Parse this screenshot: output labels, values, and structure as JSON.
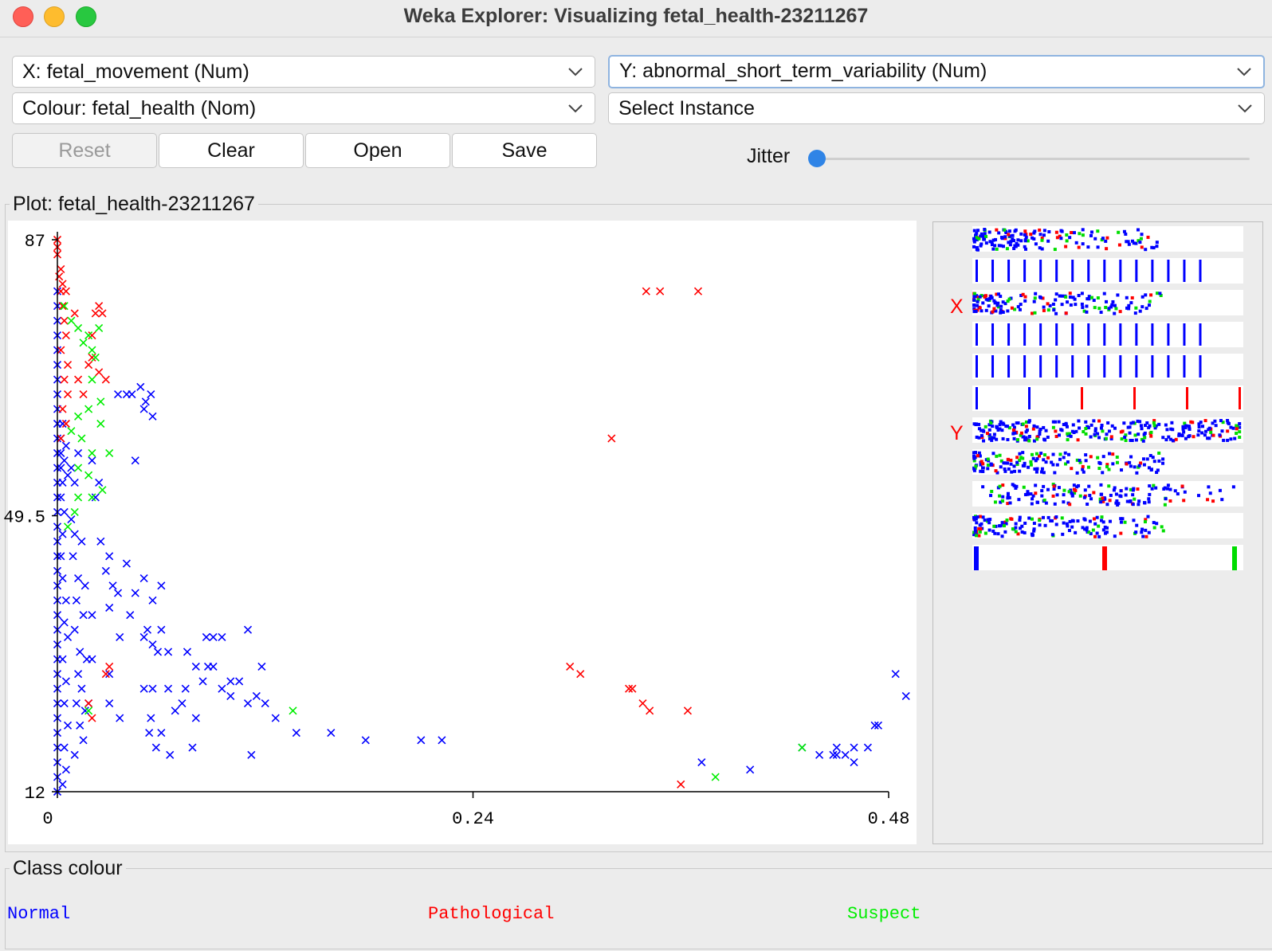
{
  "window": {
    "title": "Weka Explorer: Visualizing fetal_health-23211267"
  },
  "controls": {
    "x_axis": "X: fetal_movement (Num)",
    "y_axis": "Y: abnormal_short_term_variability (Num)",
    "colour": "Colour: fetal_health (Nom)",
    "instance": "Select Instance",
    "reset": "Reset",
    "clear": "Clear",
    "open": "Open",
    "save": "Save",
    "jitter": "Jitter",
    "jitter_value": 0
  },
  "plot": {
    "group_label": "Plot: fetal_health-23211267",
    "y_ticks": [
      "87",
      "49.5",
      "12"
    ],
    "x_ticks": [
      "0",
      "0.24",
      "0.48"
    ]
  },
  "matrix": {
    "x_marker": "X",
    "y_marker": "Y"
  },
  "class_colour": {
    "group_label": "Class colour",
    "classes": [
      {
        "name": "Normal",
        "color": "#0000ff"
      },
      {
        "name": "Pathological",
        "color": "#ff0000"
      },
      {
        "name": "Suspect",
        "color": "#00ee00"
      }
    ]
  },
  "chart_data": {
    "type": "scatter",
    "xlabel": "fetal_movement",
    "ylabel": "abnormal_short_term_variability",
    "xlim": [
      0,
      0.48
    ],
    "ylim": [
      12,
      87
    ],
    "xticks": [
      "0",
      "0.24",
      "0.48"
    ],
    "yticks": [
      "87",
      "49.5",
      "12"
    ],
    "series": [
      {
        "name": "Normal",
        "color": "#0000ff",
        "points": [
          [
            0.0,
            12
          ],
          [
            0.0,
            14
          ],
          [
            0.0,
            16
          ],
          [
            0.0,
            18
          ],
          [
            0.0,
            20
          ],
          [
            0.0,
            22
          ],
          [
            0.0,
            24
          ],
          [
            0.0,
            26
          ],
          [
            0.0,
            28
          ],
          [
            0.0,
            30
          ],
          [
            0.0,
            32
          ],
          [
            0.0,
            34
          ],
          [
            0.0,
            36
          ],
          [
            0.0,
            38
          ],
          [
            0.0,
            40
          ],
          [
            0.0,
            42
          ],
          [
            0.0,
            44
          ],
          [
            0.0,
            46
          ],
          [
            0.0,
            48
          ],
          [
            0.0,
            50
          ],
          [
            0.0,
            52
          ],
          [
            0.0,
            54
          ],
          [
            0.0,
            56
          ],
          [
            0.0,
            58
          ],
          [
            0.0,
            60
          ],
          [
            0.0,
            62
          ],
          [
            0.0,
            64
          ],
          [
            0.0,
            66
          ],
          [
            0.0,
            68
          ],
          [
            0.0,
            70
          ],
          [
            0.0,
            72
          ],
          [
            0.0,
            74
          ],
          [
            0.0,
            76
          ],
          [
            0.0,
            78
          ],
          [
            0.0,
            80
          ],
          [
            0.002,
            56
          ],
          [
            0.002,
            58
          ],
          [
            0.002,
            60
          ],
          [
            0.003,
            62
          ],
          [
            0.002,
            52
          ],
          [
            0.003,
            54
          ],
          [
            0.004,
            57
          ],
          [
            0.005,
            59
          ],
          [
            0.006,
            55
          ],
          [
            0.004,
            50
          ],
          [
            0.003,
            47
          ],
          [
            0.002,
            44
          ],
          [
            0.003,
            41
          ],
          [
            0.005,
            38
          ],
          [
            0.004,
            35
          ],
          [
            0.006,
            33
          ],
          [
            0.003,
            30
          ],
          [
            0.005,
            27
          ],
          [
            0.004,
            24
          ],
          [
            0.006,
            21
          ],
          [
            0.004,
            18
          ],
          [
            0.005,
            15
          ],
          [
            0.003,
            13
          ],
          [
            0.008,
            56
          ],
          [
            0.01,
            54
          ],
          [
            0.012,
            58
          ],
          [
            0.008,
            49
          ],
          [
            0.01,
            47
          ],
          [
            0.014,
            46
          ],
          [
            0.009,
            44
          ],
          [
            0.012,
            41
          ],
          [
            0.016,
            40
          ],
          [
            0.011,
            38
          ],
          [
            0.015,
            36
          ],
          [
            0.01,
            34
          ],
          [
            0.013,
            31
          ],
          [
            0.017,
            30
          ],
          [
            0.012,
            28
          ],
          [
            0.014,
            26
          ],
          [
            0.011,
            24
          ],
          [
            0.016,
            23
          ],
          [
            0.013,
            21
          ],
          [
            0.015,
            19
          ],
          [
            0.01,
            17
          ],
          [
            0.018,
            24
          ],
          [
            0.02,
            30
          ],
          [
            0.02,
            36
          ],
          [
            0.024,
            54
          ],
          [
            0.02,
            57
          ],
          [
            0.022,
            52
          ],
          [
            0.025,
            46
          ],
          [
            0.03,
            44
          ],
          [
            0.028,
            42
          ],
          [
            0.032,
            40
          ],
          [
            0.035,
            39
          ],
          [
            0.03,
            37
          ],
          [
            0.042,
            36
          ],
          [
            0.045,
            39
          ],
          [
            0.05,
            41
          ],
          [
            0.04,
            43
          ],
          [
            0.06,
            40
          ],
          [
            0.055,
            38
          ],
          [
            0.036,
            33
          ],
          [
            0.05,
            33
          ],
          [
            0.03,
            28
          ],
          [
            0.03,
            24
          ],
          [
            0.036,
            22
          ],
          [
            0.035,
            66
          ],
          [
            0.04,
            66
          ],
          [
            0.043,
            66
          ],
          [
            0.048,
            67
          ],
          [
            0.051,
            65
          ],
          [
            0.054,
            66
          ],
          [
            0.05,
            64
          ],
          [
            0.055,
            63
          ],
          [
            0.045,
            57
          ],
          [
            0.052,
            34
          ],
          [
            0.055,
            32
          ],
          [
            0.06,
            34
          ],
          [
            0.058,
            31
          ],
          [
            0.064,
            31
          ],
          [
            0.075,
            31
          ],
          [
            0.086,
            33
          ],
          [
            0.09,
            33
          ],
          [
            0.095,
            33
          ],
          [
            0.087,
            29
          ],
          [
            0.09,
            29
          ],
          [
            0.11,
            34
          ],
          [
            0.105,
            27
          ],
          [
            0.1,
            27
          ],
          [
            0.08,
            29
          ],
          [
            0.118,
            29
          ],
          [
            0.05,
            26
          ],
          [
            0.055,
            26
          ],
          [
            0.064,
            26
          ],
          [
            0.074,
            26
          ],
          [
            0.084,
            27
          ],
          [
            0.095,
            26
          ],
          [
            0.1,
            25
          ],
          [
            0.115,
            25
          ],
          [
            0.12,
            24
          ],
          [
            0.11,
            24
          ],
          [
            0.08,
            22
          ],
          [
            0.072,
            24
          ],
          [
            0.068,
            23
          ],
          [
            0.054,
            22
          ],
          [
            0.06,
            20
          ],
          [
            0.053,
            20
          ],
          [
            0.057,
            18
          ],
          [
            0.065,
            17
          ],
          [
            0.078,
            18
          ],
          [
            0.112,
            17
          ],
          [
            0.138,
            20
          ],
          [
            0.158,
            20
          ],
          [
            0.178,
            19
          ],
          [
            0.21,
            19
          ],
          [
            0.222,
            19
          ],
          [
            0.126,
            22
          ],
          [
            0.372,
            16
          ],
          [
            0.4,
            15
          ],
          [
            0.43,
            18
          ],
          [
            0.44,
            17
          ],
          [
            0.448,
            17
          ],
          [
            0.45,
            17
          ],
          [
            0.455,
            17
          ],
          [
            0.46,
            16
          ],
          [
            0.45,
            18
          ],
          [
            0.472,
            21
          ],
          [
            0.474,
            21
          ],
          [
            0.46,
            18
          ],
          [
            0.468,
            18
          ],
          [
            0.484,
            28
          ],
          [
            0.49,
            25
          ]
        ]
      },
      {
        "name": "Pathological",
        "color": "#ff0000",
        "points": [
          [
            0.0,
            87
          ],
          [
            0.0,
            86
          ],
          [
            0.0,
            85
          ],
          [
            0.002,
            83
          ],
          [
            0.001,
            82
          ],
          [
            0.003,
            81
          ],
          [
            0.002,
            80
          ],
          [
            0.005,
            80
          ],
          [
            0.003,
            78
          ],
          [
            0.004,
            76
          ],
          [
            0.005,
            74
          ],
          [
            0.002,
            72
          ],
          [
            0.006,
            70
          ],
          [
            0.004,
            68
          ],
          [
            0.006,
            66
          ],
          [
            0.003,
            64
          ],
          [
            0.005,
            62
          ],
          [
            0.002,
            60
          ],
          [
            0.01,
            77
          ],
          [
            0.022,
            77
          ],
          [
            0.024,
            78
          ],
          [
            0.026,
            77
          ],
          [
            0.02,
            71
          ],
          [
            0.024,
            69
          ],
          [
            0.028,
            68
          ],
          [
            0.012,
            68
          ],
          [
            0.015,
            66
          ],
          [
            0.018,
            70
          ],
          [
            0.02,
            74
          ],
          [
            0.03,
            29
          ],
          [
            0.028,
            28
          ],
          [
            0.018,
            24
          ],
          [
            0.02,
            22
          ],
          [
            0.34,
            80
          ],
          [
            0.348,
            80
          ],
          [
            0.37,
            80
          ],
          [
            0.32,
            60
          ],
          [
            0.296,
            29
          ],
          [
            0.302,
            28
          ],
          [
            0.33,
            26
          ],
          [
            0.332,
            26
          ],
          [
            0.338,
            24
          ],
          [
            0.342,
            23
          ],
          [
            0.364,
            23
          ],
          [
            0.36,
            13
          ]
        ]
      },
      {
        "name": "Suspect",
        "color": "#00ee00",
        "points": [
          [
            0.004,
            78
          ],
          [
            0.008,
            76
          ],
          [
            0.012,
            75
          ],
          [
            0.018,
            74
          ],
          [
            0.02,
            72
          ],
          [
            0.024,
            75
          ],
          [
            0.015,
            73
          ],
          [
            0.022,
            71
          ],
          [
            0.02,
            68
          ],
          [
            0.025,
            65
          ],
          [
            0.018,
            64
          ],
          [
            0.012,
            63
          ],
          [
            0.025,
            62
          ],
          [
            0.008,
            61
          ],
          [
            0.014,
            60
          ],
          [
            0.02,
            58
          ],
          [
            0.03,
            58
          ],
          [
            0.012,
            56
          ],
          [
            0.018,
            55
          ],
          [
            0.026,
            53
          ],
          [
            0.012,
            52
          ],
          [
            0.02,
            52
          ],
          [
            0.01,
            50
          ],
          [
            0.006,
            48
          ],
          [
            0.018,
            23
          ],
          [
            0.136,
            23
          ],
          [
            0.43,
            18
          ],
          [
            0.38,
            14
          ]
        ]
      }
    ]
  }
}
